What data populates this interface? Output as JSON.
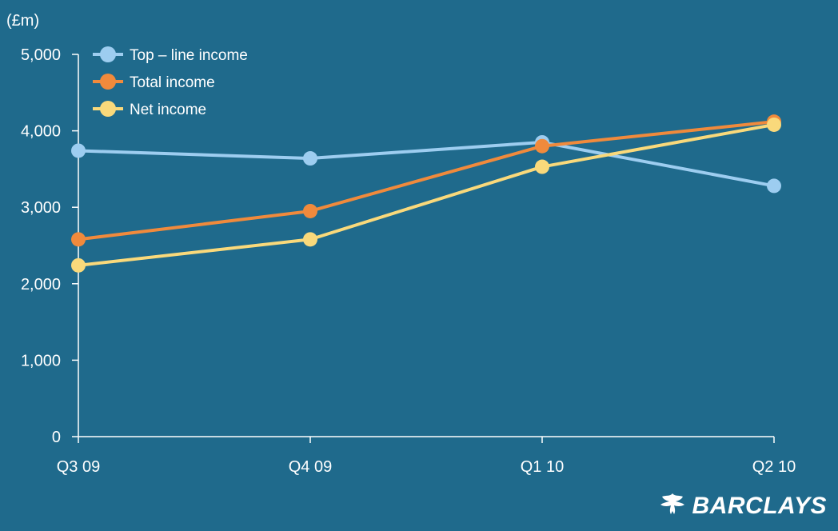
{
  "chart_data": {
    "type": "line",
    "unit_label": "(£m)",
    "categories": [
      "Q3 09",
      "Q4 09",
      "Q1 10",
      "Q2 10"
    ],
    "ylim": [
      0,
      5000
    ],
    "yticks": [
      0,
      1000,
      2000,
      3000,
      4000,
      5000
    ],
    "ytick_labels": [
      "0",
      "1,000",
      "2,000",
      "3,000",
      "4,000",
      "5,000"
    ],
    "grid": false,
    "legend_position": "top-left",
    "series": [
      {
        "name": "Top – line income",
        "color": "#9dcdf0",
        "values": [
          3740,
          3640,
          3850,
          3280
        ]
      },
      {
        "name": "Total income",
        "color": "#f08a3c",
        "values": [
          2580,
          2950,
          3800,
          4120
        ]
      },
      {
        "name": "Net income",
        "color": "#f9d97b",
        "values": [
          2240,
          2580,
          3530,
          4080
        ]
      }
    ]
  },
  "brand": {
    "name": "BARCLAYS",
    "logo_icon": "eagle-icon"
  },
  "colors": {
    "background": "#1f6a8c",
    "axis": "#ffffff"
  }
}
